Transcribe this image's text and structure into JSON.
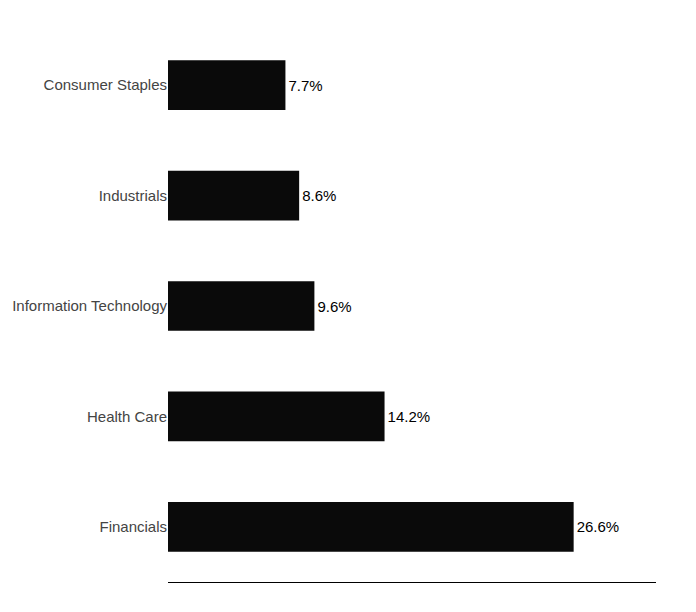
{
  "chart_data": {
    "type": "bar",
    "orientation": "horizontal",
    "categories": [
      "Financials",
      "Health Care",
      "Information Technology",
      "Industrials",
      "Consumer Staples"
    ],
    "values": [
      26.6,
      14.2,
      9.6,
      8.6,
      7.7
    ],
    "value_labels": [
      "26.6%",
      "14.2%",
      "9.6%",
      "8.6%",
      "7.7%"
    ],
    "data_labels": true,
    "color": "#0a0a0a",
    "xlim": [
      0,
      32
    ],
    "grid": false,
    "tick_labels": "y"
  }
}
